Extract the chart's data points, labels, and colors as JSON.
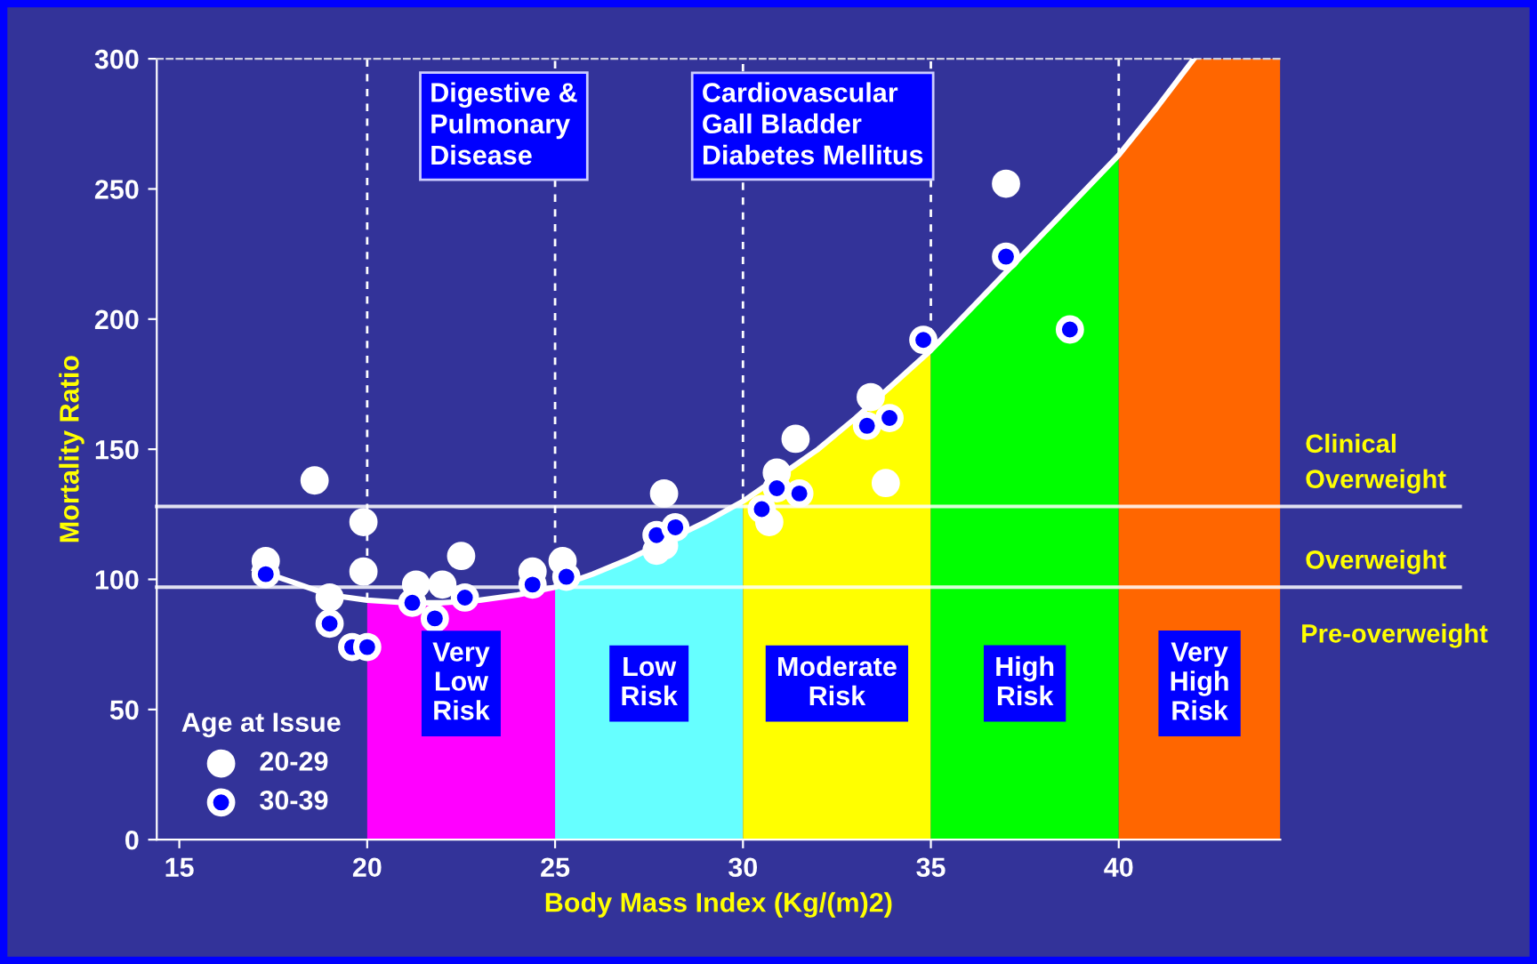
{
  "chart_data": {
    "type": "scatter",
    "xlabel": "Body Mass Index (Kg/(m)2)",
    "ylabel": "Mortality Ratio",
    "legend_title": "Age at Issue",
    "xlim": [
      14.4,
      44.3
    ],
    "ylim": [
      0,
      300
    ],
    "xticks": [
      15,
      20,
      25,
      30,
      35,
      40
    ],
    "yticks": [
      0,
      50,
      100,
      150,
      200,
      250,
      300
    ],
    "grid": false,
    "legend": "bottom left",
    "series": [
      {
        "name": "20-29",
        "marker": "circle",
        "color": "#ffffff",
        "x": [
          17.3,
          18.6,
          19.9,
          19.9,
          19.0,
          21.3,
          22.0,
          22.5,
          24.4,
          25.2,
          27.9,
          27.7,
          27.9,
          31.4,
          33.4,
          33.8,
          30.9,
          30.7,
          37.0
        ],
        "values": [
          107,
          138,
          122,
          103,
          93,
          98,
          98,
          109,
          103,
          107,
          133,
          111,
          113,
          154,
          170,
          137,
          141,
          122,
          252
        ]
      },
      {
        "name": "30-39",
        "marker": "circle",
        "color": "#0000ff",
        "x": [
          17.3,
          19.0,
          19.6,
          20.0,
          21.2,
          21.8,
          22.6,
          24.4,
          25.3,
          27.7,
          28.2,
          30.5,
          30.9,
          31.5,
          33.3,
          33.9,
          34.8,
          38.7,
          37.0
        ],
        "values": [
          102,
          83,
          74,
          74,
          91,
          85,
          93,
          98,
          101,
          117,
          120,
          127,
          135,
          133,
          159,
          162,
          192,
          196,
          224
        ]
      },
      {
        "type": "line",
        "marker": "none",
        "color": "#ffffff",
        "line_style": "solid",
        "x": [
          17,
          18,
          19,
          20,
          21,
          22,
          23,
          24,
          25,
          26,
          27,
          28,
          29,
          30,
          31,
          32,
          33,
          34,
          35,
          36,
          37,
          38,
          39,
          40,
          41,
          42
        ],
        "values": [
          104,
          99,
          94,
          92,
          91,
          91,
          92,
          94,
          97,
          102,
          108,
          115,
          122,
          130,
          140,
          150,
          162,
          175,
          188,
          203,
          218,
          233,
          248,
          263,
          281,
          300
        ]
      }
    ],
    "bands": [
      {
        "axis": "x",
        "from": 20,
        "to": 25,
        "label": "Very\nLow\nRisk",
        "color": "#ff00ff"
      },
      {
        "axis": "x",
        "from": 25,
        "to": 30,
        "label": "Low\nRisk",
        "color": "#66ffff"
      },
      {
        "axis": "x",
        "from": 30,
        "to": 35,
        "label": "Moderate\nRisk",
        "color": "#ffff00"
      },
      {
        "axis": "x",
        "from": 35,
        "to": 40,
        "label": "High\nRisk",
        "color": "#00ff00"
      },
      {
        "axis": "x",
        "from": 40,
        "to": 44.3,
        "label": "Very\nHigh\nRisk",
        "color": "#ff6600"
      }
    ],
    "ref_lines": [
      {
        "axis": "y",
        "value": 128,
        "label": "Clinical\nOverweight",
        "color": "#ffffff",
        "line_style": "solid"
      },
      {
        "axis": "y",
        "value": 97,
        "label": "Overweight",
        "color": "#ffffff",
        "line_style": "solid"
      },
      {
        "axis": "x",
        "value": 20,
        "color": "#ffffff",
        "line_style": "dashed"
      },
      {
        "axis": "x",
        "value": 25,
        "color": "#ffffff",
        "line_style": "dashed"
      },
      {
        "axis": "x",
        "value": 30,
        "color": "#ffffff",
        "line_style": "dashed"
      },
      {
        "axis": "x",
        "value": 35,
        "color": "#ffffff",
        "line_style": "dashed"
      },
      {
        "axis": "x",
        "value": 40,
        "color": "#ffffff",
        "line_style": "dashed"
      }
    ],
    "annotations": [
      "Digestive &\nPulmonary\nDisease",
      "Cardiovascular\nGall Bladder\nDiabetes Mellitus",
      "Pre-overweight"
    ]
  }
}
